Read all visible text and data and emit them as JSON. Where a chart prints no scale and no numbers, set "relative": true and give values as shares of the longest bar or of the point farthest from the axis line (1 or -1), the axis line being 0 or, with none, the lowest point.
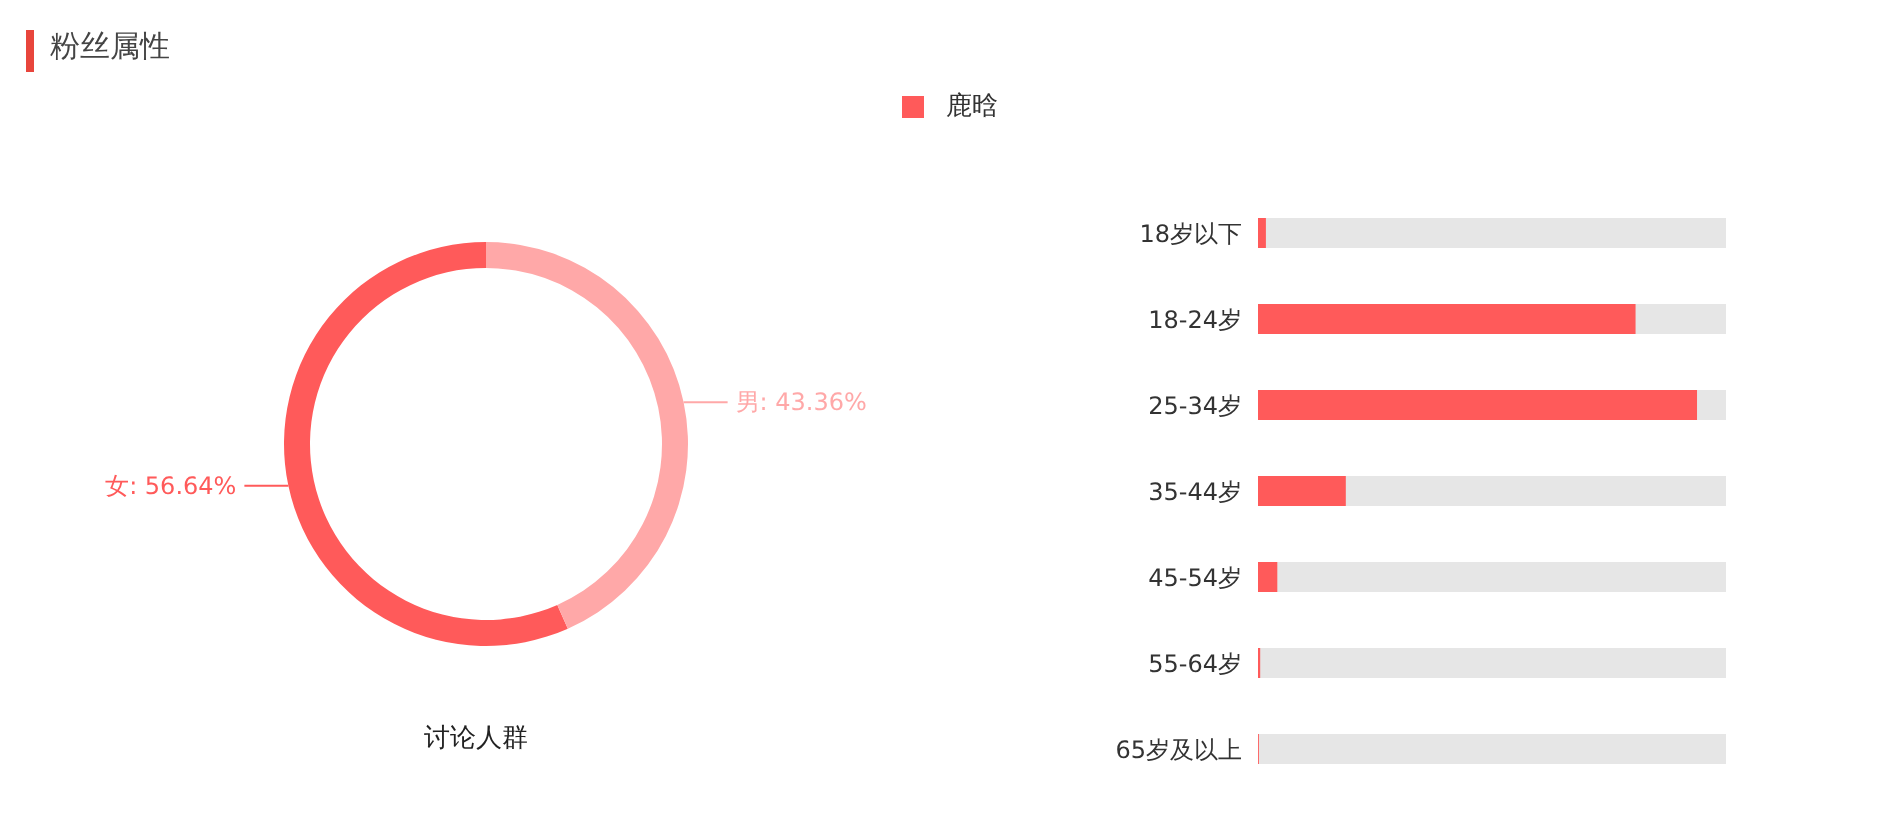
{
  "chart_data": [
    {
      "type": "donut",
      "title": "粉丝属性",
      "categories": [
        "女",
        "男"
      ],
      "values": [
        56.64,
        43.36
      ],
      "colors": [
        "#ff5a5a",
        "#ffa8a8"
      ],
      "value_labels": [
        "56.64%",
        "43.36%"
      ],
      "annotations": [
        "讨论人群"
      ]
    },
    {
      "type": "bar",
      "orientation": "horizontal",
      "relative": true,
      "legend": "top",
      "categories": [
        "18岁以下",
        "18-24岁",
        "25-34岁",
        "35-44岁",
        "45-54岁",
        "55-64岁",
        "65岁及以上"
      ],
      "series": [
        {
          "name": "鹿晗",
          "color": "#ff5a5a",
          "values": [
            0.018,
            0.86,
            1,
            0.2,
            0.044,
            0.005,
            0.002
          ]
        }
      ]
    }
  ]
}
